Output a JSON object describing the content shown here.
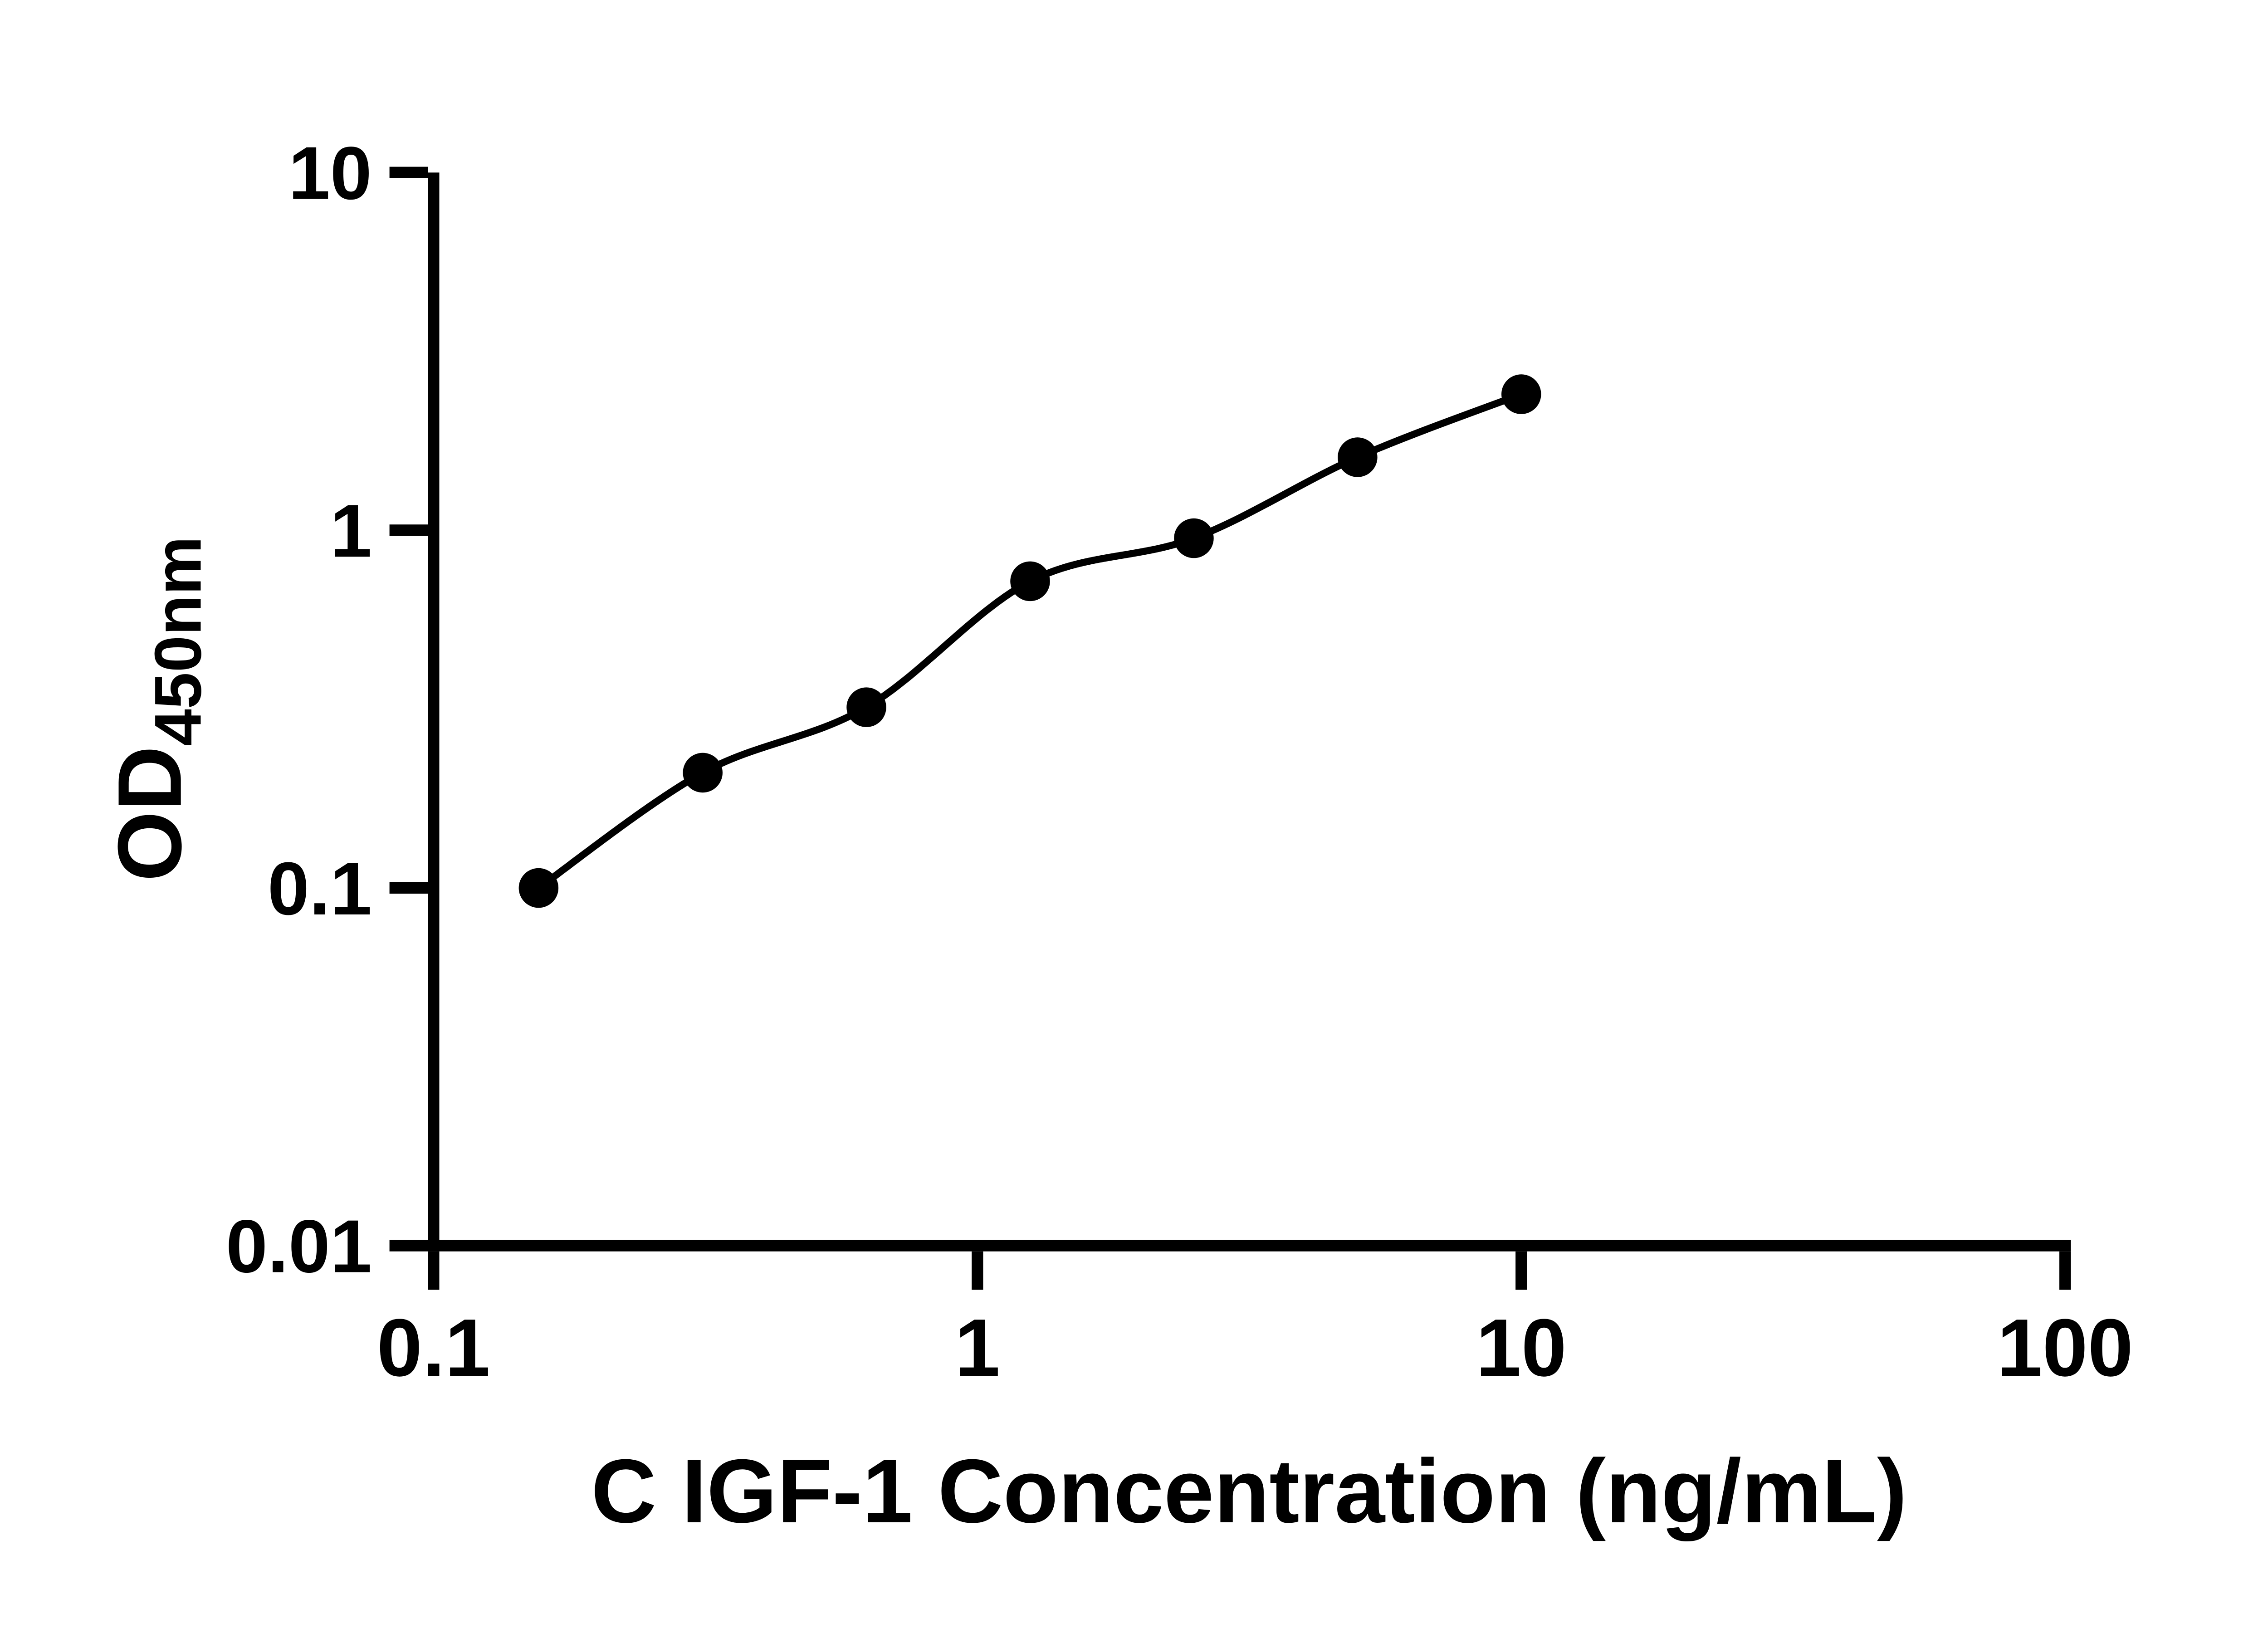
{
  "chart_data": {
    "type": "scatter",
    "title": "",
    "x_label": "C IGF-1 Concentration (ng/mL)",
    "y_label_main": "OD",
    "y_label_sub": "450nm",
    "x_scale": "log",
    "y_scale": "log",
    "x_range": [
      0.1,
      100
    ],
    "y_range": [
      0.01,
      10
    ],
    "grid": false,
    "legend": false,
    "background": "#ffffff",
    "axis_color": "#000000",
    "x_ticks": [
      {
        "value": 0.1,
        "label": "0.1"
      },
      {
        "value": 1,
        "label": "1"
      },
      {
        "value": 10,
        "label": "10"
      },
      {
        "value": 100,
        "label": "100"
      }
    ],
    "y_ticks": [
      {
        "value": 10,
        "label": "10"
      },
      {
        "value": 1,
        "label": "1"
      },
      {
        "value": 0.1,
        "label": "0.1"
      },
      {
        "value": 0.01,
        "label": "0.01"
      }
    ],
    "series": [
      {
        "marker": "circle",
        "color": "#000000",
        "line": "smooth-fit",
        "points": [
          {
            "x": 0.156,
            "y": 0.1
          },
          {
            "x": 0.3125,
            "y": 0.21
          },
          {
            "x": 0.625,
            "y": 0.32
          },
          {
            "x": 1.25,
            "y": 0.72
          },
          {
            "x": 2.5,
            "y": 0.95
          },
          {
            "x": 5,
            "y": 1.6
          },
          {
            "x": 10,
            "y": 2.4
          }
        ]
      }
    ]
  }
}
